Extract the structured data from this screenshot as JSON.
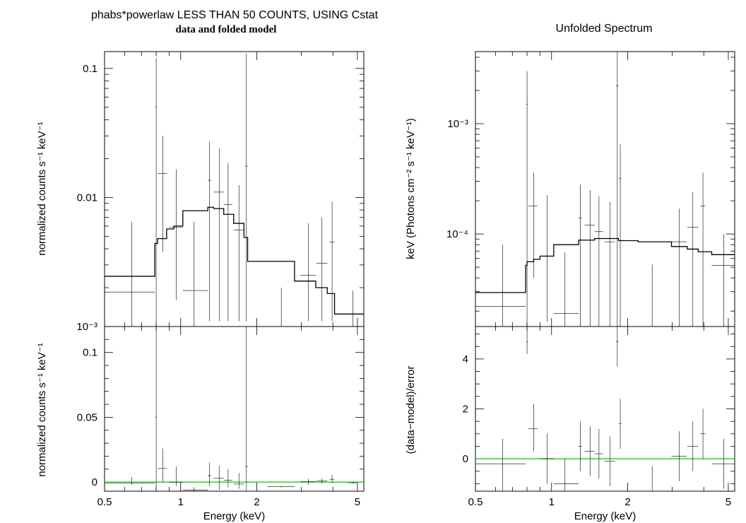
{
  "left_panel": {
    "title": "phabs*powerlaw LESS THAN 50 COUNTS, USING Cstat",
    "subtitle": "data and folded model"
  },
  "right_panel": {
    "title": "Unfolded Spectrum",
    "subtitle": ""
  },
  "colors": {
    "zero_line": "#00cc00",
    "data": "#000000",
    "model": "#000000"
  },
  "chart_data": [
    {
      "id": "ul",
      "type": "scatter",
      "xscale": "log",
      "yscale": "log",
      "xlim": [
        0.5,
        5.3
      ],
      "ylim": [
        0.001,
        0.135
      ],
      "xlabel": "",
      "ylabel": "normalized counts s⁻¹ keV⁻¹",
      "yticks_major": [
        {
          "v": 0.001,
          "label": "10⁻³"
        },
        {
          "v": 0.01,
          "label": "0.01"
        },
        {
          "v": 0.1,
          "label": "0.1"
        }
      ],
      "series": [
        {
          "kind": "data",
          "points": [
            {
              "x": 0.64,
              "xlo": 0.5,
              "xhi": 0.79,
              "y": 0.00185,
              "ylo": 0.0009,
              "yhi": 0.0065
            },
            {
              "x": 0.8,
              "xlo": 0.795,
              "xhi": 0.805,
              "y": 0.05,
              "ylo": 0.0009,
              "yhi": 0.12
            },
            {
              "x": 0.85,
              "xlo": 0.81,
              "xhi": 0.88,
              "y": 0.0153,
              "ylo": 0.0038,
              "yhi": 0.03
            },
            {
              "x": 0.96,
              "xlo": 0.9,
              "xhi": 1.02,
              "y": 0.0059,
              "ylo": 0.0016,
              "yhi": 0.0165
            },
            {
              "x": 1.13,
              "xlo": 1.02,
              "xhi": 1.28,
              "y": 0.0019,
              "ylo": 0.0009,
              "yhi": 0.0065
            },
            {
              "x": 1.3,
              "xlo": 1.28,
              "xhi": 1.32,
              "y": 0.0136,
              "ylo": 0.0011,
              "yhi": 0.027
            },
            {
              "x": 1.42,
              "xlo": 1.35,
              "xhi": 1.48,
              "y": 0.011,
              "ylo": 0.0011,
              "yhi": 0.024
            },
            {
              "x": 1.54,
              "xlo": 1.48,
              "xhi": 1.6,
              "y": 0.0088,
              "ylo": 0.0011,
              "yhi": 0.0185
            },
            {
              "x": 1.7,
              "xlo": 1.62,
              "xhi": 1.78,
              "y": 0.0056,
              "ylo": 0.0011,
              "yhi": 0.0125
            },
            {
              "x": 1.82,
              "xlo": 1.8,
              "xhi": 1.84,
              "y": 0.0175,
              "ylo": 0.0011,
              "yhi": 0.13
            },
            {
              "x": 2.5,
              "xlo": 2.2,
              "xhi": 2.82,
              "y": 0.0009,
              "ylo": 0.0009,
              "yhi": 0.002
            },
            {
              "x": 3.2,
              "xlo": 2.98,
              "xhi": 3.42,
              "y": 0.0025,
              "ylo": 0.0011,
              "yhi": 0.0063
            },
            {
              "x": 3.62,
              "xlo": 3.44,
              "xhi": 3.8,
              "y": 0.0031,
              "ylo": 0.0011,
              "yhi": 0.007
            },
            {
              "x": 3.97,
              "xlo": 3.88,
              "xhi": 4.06,
              "y": 0.0045,
              "ylo": 0.0011,
              "yhi": 0.0093
            },
            {
              "x": 4.8,
              "xlo": 4.6,
              "xhi": 5.0,
              "y": 0.0009,
              "ylo": 0.0009,
              "yhi": 0.0019
            }
          ]
        },
        {
          "kind": "model",
          "steps": [
            {
              "x0": 0.5,
              "x1": 0.79,
              "y": 0.00245
            },
            {
              "x0": 0.79,
              "x1": 0.81,
              "y": 0.0044
            },
            {
              "x0": 0.81,
              "x1": 0.88,
              "y": 0.0048
            },
            {
              "x0": 0.88,
              "x1": 0.94,
              "y": 0.0057
            },
            {
              "x0": 0.94,
              "x1": 1.02,
              "y": 0.006
            },
            {
              "x0": 1.02,
              "x1": 1.28,
              "y": 0.0079
            },
            {
              "x0": 1.28,
              "x1": 1.35,
              "y": 0.0084
            },
            {
              "x0": 1.35,
              "x1": 1.48,
              "y": 0.0082
            },
            {
              "x0": 1.48,
              "x1": 1.62,
              "y": 0.0074
            },
            {
              "x0": 1.62,
              "x1": 1.78,
              "y": 0.0063
            },
            {
              "x0": 1.78,
              "x1": 1.84,
              "y": 0.0049
            },
            {
              "x0": 1.84,
              "x1": 2.82,
              "y": 0.0032
            },
            {
              "x0": 2.82,
              "x1": 3.42,
              "y": 0.00225
            },
            {
              "x0": 3.42,
              "x1": 3.8,
              "y": 0.002
            },
            {
              "x0": 3.8,
              "x1": 4.06,
              "y": 0.0018
            },
            {
              "x0": 4.06,
              "x1": 5.3,
              "y": 0.00125
            }
          ]
        }
      ]
    },
    {
      "id": "ll",
      "type": "scatter",
      "xscale": "log",
      "yscale": "linear",
      "xlim": [
        0.5,
        5.3
      ],
      "ylim": [
        -0.007,
        0.12
      ],
      "xlabel": "Energy (keV)",
      "ylabel": "normalized counts s⁻¹ keV⁻¹",
      "yticks_major": [
        {
          "v": 0,
          "label": "0"
        },
        {
          "v": 0.05,
          "label": "0.05"
        },
        {
          "v": 0.1,
          "label": "0.1"
        }
      ],
      "xticks_major": [
        {
          "v": 0.5,
          "label": "0.5"
        },
        {
          "v": 1,
          "label": "1"
        },
        {
          "v": 2,
          "label": "2"
        },
        {
          "v": 5,
          "label": "5"
        }
      ],
      "zero_line": 0,
      "series": [
        {
          "kind": "data",
          "points": [
            {
              "x": 0.64,
              "xlo": 0.5,
              "xhi": 0.79,
              "y": -0.0006,
              "ylo": -0.002,
              "yhi": 0.004
            },
            {
              "x": 0.8,
              "xlo": 0.795,
              "xhi": 0.805,
              "y": 0.05,
              "ylo": -0.007,
              "yhi": 0.12
            },
            {
              "x": 0.85,
              "xlo": 0.81,
              "xhi": 0.88,
              "y": 0.0105,
              "ylo": -0.0001,
              "yhi": 0.026
            },
            {
              "x": 0.96,
              "xlo": 0.9,
              "xhi": 1.02,
              "y": 0.0,
              "ylo": -0.003,
              "yhi": 0.012
            },
            {
              "x": 1.13,
              "xlo": 1.02,
              "xhi": 1.28,
              "y": -0.006,
              "ylo": -0.007,
              "yhi": -0.004
            },
            {
              "x": 1.3,
              "xlo": 1.28,
              "xhi": 1.32,
              "y": 0.005,
              "ylo": -0.003,
              "yhi": 0.015
            },
            {
              "x": 1.42,
              "xlo": 1.35,
              "xhi": 1.48,
              "y": 0.003,
              "ylo": -0.006,
              "yhi": 0.013
            },
            {
              "x": 1.54,
              "xlo": 1.48,
              "xhi": 1.6,
              "y": 0.0015,
              "ylo": -0.004,
              "yhi": 0.01
            },
            {
              "x": 1.7,
              "xlo": 1.62,
              "xhi": 1.78,
              "y": -0.0015,
              "ylo": -0.005,
              "yhi": 0.007
            },
            {
              "x": 1.82,
              "xlo": 1.8,
              "xhi": 1.84,
              "y": 0.012,
              "ylo": -0.007,
              "yhi": 0.12
            },
            {
              "x": 2.5,
              "xlo": 2.2,
              "xhi": 2.82,
              "y": -0.0035,
              "ylo": -0.004,
              "yhi": -0.003
            },
            {
              "x": 3.2,
              "xlo": 2.98,
              "xhi": 3.42,
              "y": 0.0003,
              "ylo": -0.002,
              "yhi": 0.0025
            },
            {
              "x": 3.62,
              "xlo": 3.44,
              "xhi": 3.8,
              "y": 0.001,
              "ylo": -0.001,
              "yhi": 0.003
            },
            {
              "x": 3.97,
              "xlo": 3.88,
              "xhi": 4.06,
              "y": 0.0022,
              "ylo": -0.0005,
              "yhi": 0.0055
            },
            {
              "x": 4.8,
              "xlo": 4.6,
              "xhi": 5.0,
              "y": -0.0005,
              "ylo": -0.001,
              "yhi": 0.0
            }
          ]
        }
      ]
    },
    {
      "id": "ur",
      "type": "scatter",
      "xscale": "log",
      "yscale": "log",
      "xlim": [
        0.5,
        5.3
      ],
      "ylim": [
        1.45e-05,
        0.0045
      ],
      "xlabel": "",
      "ylabel": "keV (Photons cm⁻² s⁻¹ keV⁻¹)",
      "yticks_major": [
        {
          "v": 0.0001,
          "label": "10⁻⁴"
        },
        {
          "v": 0.001,
          "label": "10⁻³"
        }
      ],
      "series": [
        {
          "kind": "data",
          "points": [
            {
              "x": 0.64,
              "xlo": 0.5,
              "xhi": 0.79,
              "y": 2.2e-05,
              "ylo": 1.45e-05,
              "yhi": 8e-05
            },
            {
              "x": 0.8,
              "xlo": 0.795,
              "xhi": 0.805,
              "y": 0.0015,
              "ylo": 1.45e-05,
              "yhi": 0.003
            },
            {
              "x": 0.85,
              "xlo": 0.81,
              "xhi": 0.88,
              "y": 0.00018,
              "ylo": 4e-05,
              "yhi": 0.00036
            },
            {
              "x": 0.96,
              "xlo": 0.9,
              "xhi": 1.02,
              "y": 6.3e-05,
              "ylo": 1.6e-05,
              "yhi": 0.000225
            },
            {
              "x": 1.13,
              "xlo": 1.02,
              "xhi": 1.28,
              "y": 1.9e-05,
              "ylo": 1.45e-05,
              "yhi": 6.8e-05
            },
            {
              "x": 1.3,
              "xlo": 1.28,
              "xhi": 1.32,
              "y": 0.00014,
              "ylo": 1.45e-05,
              "yhi": 0.00028
            },
            {
              "x": 1.42,
              "xlo": 1.35,
              "xhi": 1.48,
              "y": 0.00012,
              "ylo": 1.45e-05,
              "yhi": 0.00025
            },
            {
              "x": 1.54,
              "xlo": 1.48,
              "xhi": 1.6,
              "y": 0.000105,
              "ylo": 1.45e-05,
              "yhi": 0.00022
            },
            {
              "x": 1.7,
              "xlo": 1.62,
              "xhi": 1.78,
              "y": 8.5e-05,
              "ylo": 1.45e-05,
              "yhi": 0.000195
            },
            {
              "x": 1.82,
              "xlo": 1.8,
              "xhi": 1.84,
              "y": 0.0022,
              "ylo": 1.45e-05,
              "yhi": 0.0045
            },
            {
              "x": 1.87,
              "xlo": 1.85,
              "xhi": 1.89,
              "y": 0.00032,
              "ylo": 1.45e-05,
              "yhi": 0.00065
            },
            {
              "x": 2.5,
              "xlo": 2.2,
              "xhi": 2.82,
              "y": 1.45e-05,
              "ylo": 1.45e-05,
              "yhi": 5.3e-05
            },
            {
              "x": 3.2,
              "xlo": 2.98,
              "xhi": 3.42,
              "y": 8.5e-05,
              "ylo": 1.45e-05,
              "yhi": 0.00017
            },
            {
              "x": 3.62,
              "xlo": 3.44,
              "xhi": 3.8,
              "y": 0.000115,
              "ylo": 1.45e-05,
              "yhi": 0.00024
            },
            {
              "x": 3.97,
              "xlo": 3.88,
              "xhi": 4.06,
              "y": 0.00018,
              "ylo": 1.45e-05,
              "yhi": 0.00036
            },
            {
              "x": 4.8,
              "xlo": 4.3,
              "xhi": 5.3,
              "y": 5.2e-05,
              "ylo": 1.45e-05,
              "yhi": 0.0001
            }
          ]
        },
        {
          "kind": "model",
          "steps": [
            {
              "x0": 0.5,
              "x1": 0.79,
              "y": 2.95e-05
            },
            {
              "x0": 0.79,
              "x1": 0.8,
              "y": 5.2e-05
            },
            {
              "x0": 0.8,
              "x1": 0.85,
              "y": 5.6e-05
            },
            {
              "x0": 0.85,
              "x1": 0.9,
              "y": 5.9e-05
            },
            {
              "x0": 0.9,
              "x1": 1.02,
              "y": 6.3e-05
            },
            {
              "x0": 1.02,
              "x1": 1.28,
              "y": 8e-05
            },
            {
              "x0": 1.28,
              "x1": 1.48,
              "y": 8.8e-05
            },
            {
              "x0": 1.48,
              "x1": 1.84,
              "y": 9.1e-05
            },
            {
              "x0": 1.84,
              "x1": 2.2,
              "y": 8.7e-05
            },
            {
              "x0": 2.2,
              "x1": 2.98,
              "y": 8.5e-05
            },
            {
              "x0": 2.98,
              "x1": 3.44,
              "y": 7.7e-05
            },
            {
              "x0": 3.44,
              "x1": 3.8,
              "y": 7.3e-05
            },
            {
              "x0": 3.8,
              "x1": 4.3,
              "y": 6.9e-05
            },
            {
              "x0": 4.3,
              "x1": 5.3,
              "y": 6.5e-05
            }
          ]
        }
      ]
    },
    {
      "id": "lr",
      "type": "scatter",
      "xscale": "log",
      "yscale": "linear",
      "xlim": [
        0.5,
        5.3
      ],
      "ylim": [
        -1.3,
        5.3
      ],
      "xlabel": "Energy (keV)",
      "ylabel": "(data−model)/error",
      "yticks_major": [
        {
          "v": 0,
          "label": "0"
        },
        {
          "v": 2,
          "label": "2"
        },
        {
          "v": 4,
          "label": "4"
        }
      ],
      "xticks_major": [
        {
          "v": 0.5,
          "label": "0.5"
        },
        {
          "v": 1,
          "label": "1"
        },
        {
          "v": 2,
          "label": "2"
        },
        {
          "v": 5,
          "label": "5"
        }
      ],
      "zero_line": 0,
      "series": [
        {
          "kind": "data",
          "points": [
            {
              "x": 0.64,
              "xlo": 0.5,
              "xhi": 0.79,
              "y": -0.2,
              "ylo": -1.3,
              "yhi": 0.8
            },
            {
              "x": 0.8,
              "xlo": 0.795,
              "xhi": 0.805,
              "y": 4.7,
              "ylo": 4.2,
              "yhi": 5.3
            },
            {
              "x": 0.85,
              "xlo": 0.81,
              "xhi": 0.88,
              "y": 1.2,
              "ylo": 0.3,
              "yhi": 2.2
            },
            {
              "x": 0.96,
              "xlo": 0.9,
              "xhi": 1.02,
              "y": 0.0,
              "ylo": -1.0,
              "yhi": 1.0
            },
            {
              "x": 1.13,
              "xlo": 1.02,
              "xhi": 1.28,
              "y": -1.0,
              "ylo": -1.3,
              "yhi": 0.0
            },
            {
              "x": 1.3,
              "xlo": 1.28,
              "xhi": 1.32,
              "y": 0.5,
              "ylo": -0.5,
              "yhi": 1.5
            },
            {
              "x": 1.42,
              "xlo": 1.35,
              "xhi": 1.48,
              "y": 0.3,
              "ylo": -0.7,
              "yhi": 1.3
            },
            {
              "x": 1.54,
              "xlo": 1.48,
              "xhi": 1.6,
              "y": 0.2,
              "ylo": -0.8,
              "yhi": 1.2
            },
            {
              "x": 1.7,
              "xlo": 1.62,
              "xhi": 1.78,
              "y": -0.1,
              "ylo": -1.1,
              "yhi": 0.9
            },
            {
              "x": 1.82,
              "xlo": 1.8,
              "xhi": 1.84,
              "y": 4.7,
              "ylo": 3.7,
              "yhi": 5.3
            },
            {
              "x": 1.87,
              "xlo": 1.85,
              "xhi": 1.89,
              "y": 1.4,
              "ylo": 0.4,
              "yhi": 2.4
            },
            {
              "x": 2.5,
              "xlo": 2.2,
              "xhi": 2.82,
              "y": -1.3,
              "ylo": -1.3,
              "yhi": -0.3
            },
            {
              "x": 3.2,
              "xlo": 2.98,
              "xhi": 3.42,
              "y": 0.1,
              "ylo": -0.9,
              "yhi": 1.1
            },
            {
              "x": 3.62,
              "xlo": 3.44,
              "xhi": 3.8,
              "y": 0.5,
              "ylo": -0.5,
              "yhi": 1.5
            },
            {
              "x": 3.97,
              "xlo": 3.88,
              "xhi": 4.06,
              "y": 1.0,
              "ylo": 0.0,
              "yhi": 2.0
            },
            {
              "x": 4.8,
              "xlo": 4.3,
              "xhi": 5.3,
              "y": -0.2,
              "ylo": -1.2,
              "yhi": 0.8
            }
          ]
        }
      ]
    }
  ]
}
